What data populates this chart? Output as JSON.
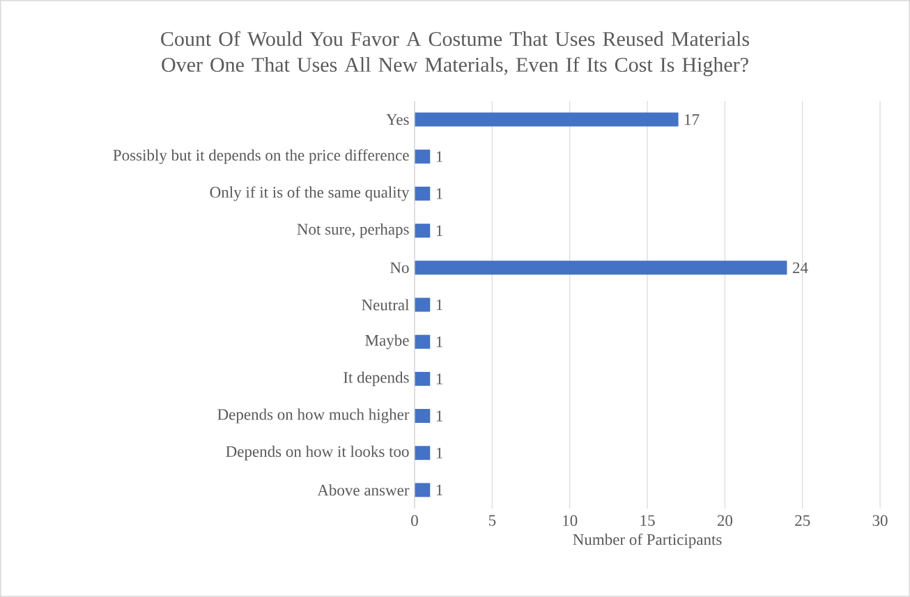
{
  "chart_data": {
    "type": "bar",
    "orientation": "horizontal",
    "title": "Count Of Would You Favor A Costume That Uses Reused Materials Over One That Uses All New Materials, Even If Its Cost Is Higher?",
    "xlabel": "Number of Participants",
    "categories": [
      "Yes",
      "Possibly but it depends on the price difference",
      "Only if it is of the same quality",
      "Not sure, perhaps",
      "No",
      "Neutral",
      "Maybe",
      "It depends",
      "Depends on how much higher",
      "Depends on how it looks too",
      "Above answer"
    ],
    "values": [
      17,
      1,
      1,
      1,
      24,
      1,
      1,
      1,
      1,
      1,
      1
    ],
    "color": "#4472c4",
    "xlim": [
      0,
      30
    ],
    "xticks": [
      0,
      5,
      10,
      15,
      20,
      25,
      30
    ],
    "grid": "x",
    "data_labels": true
  }
}
